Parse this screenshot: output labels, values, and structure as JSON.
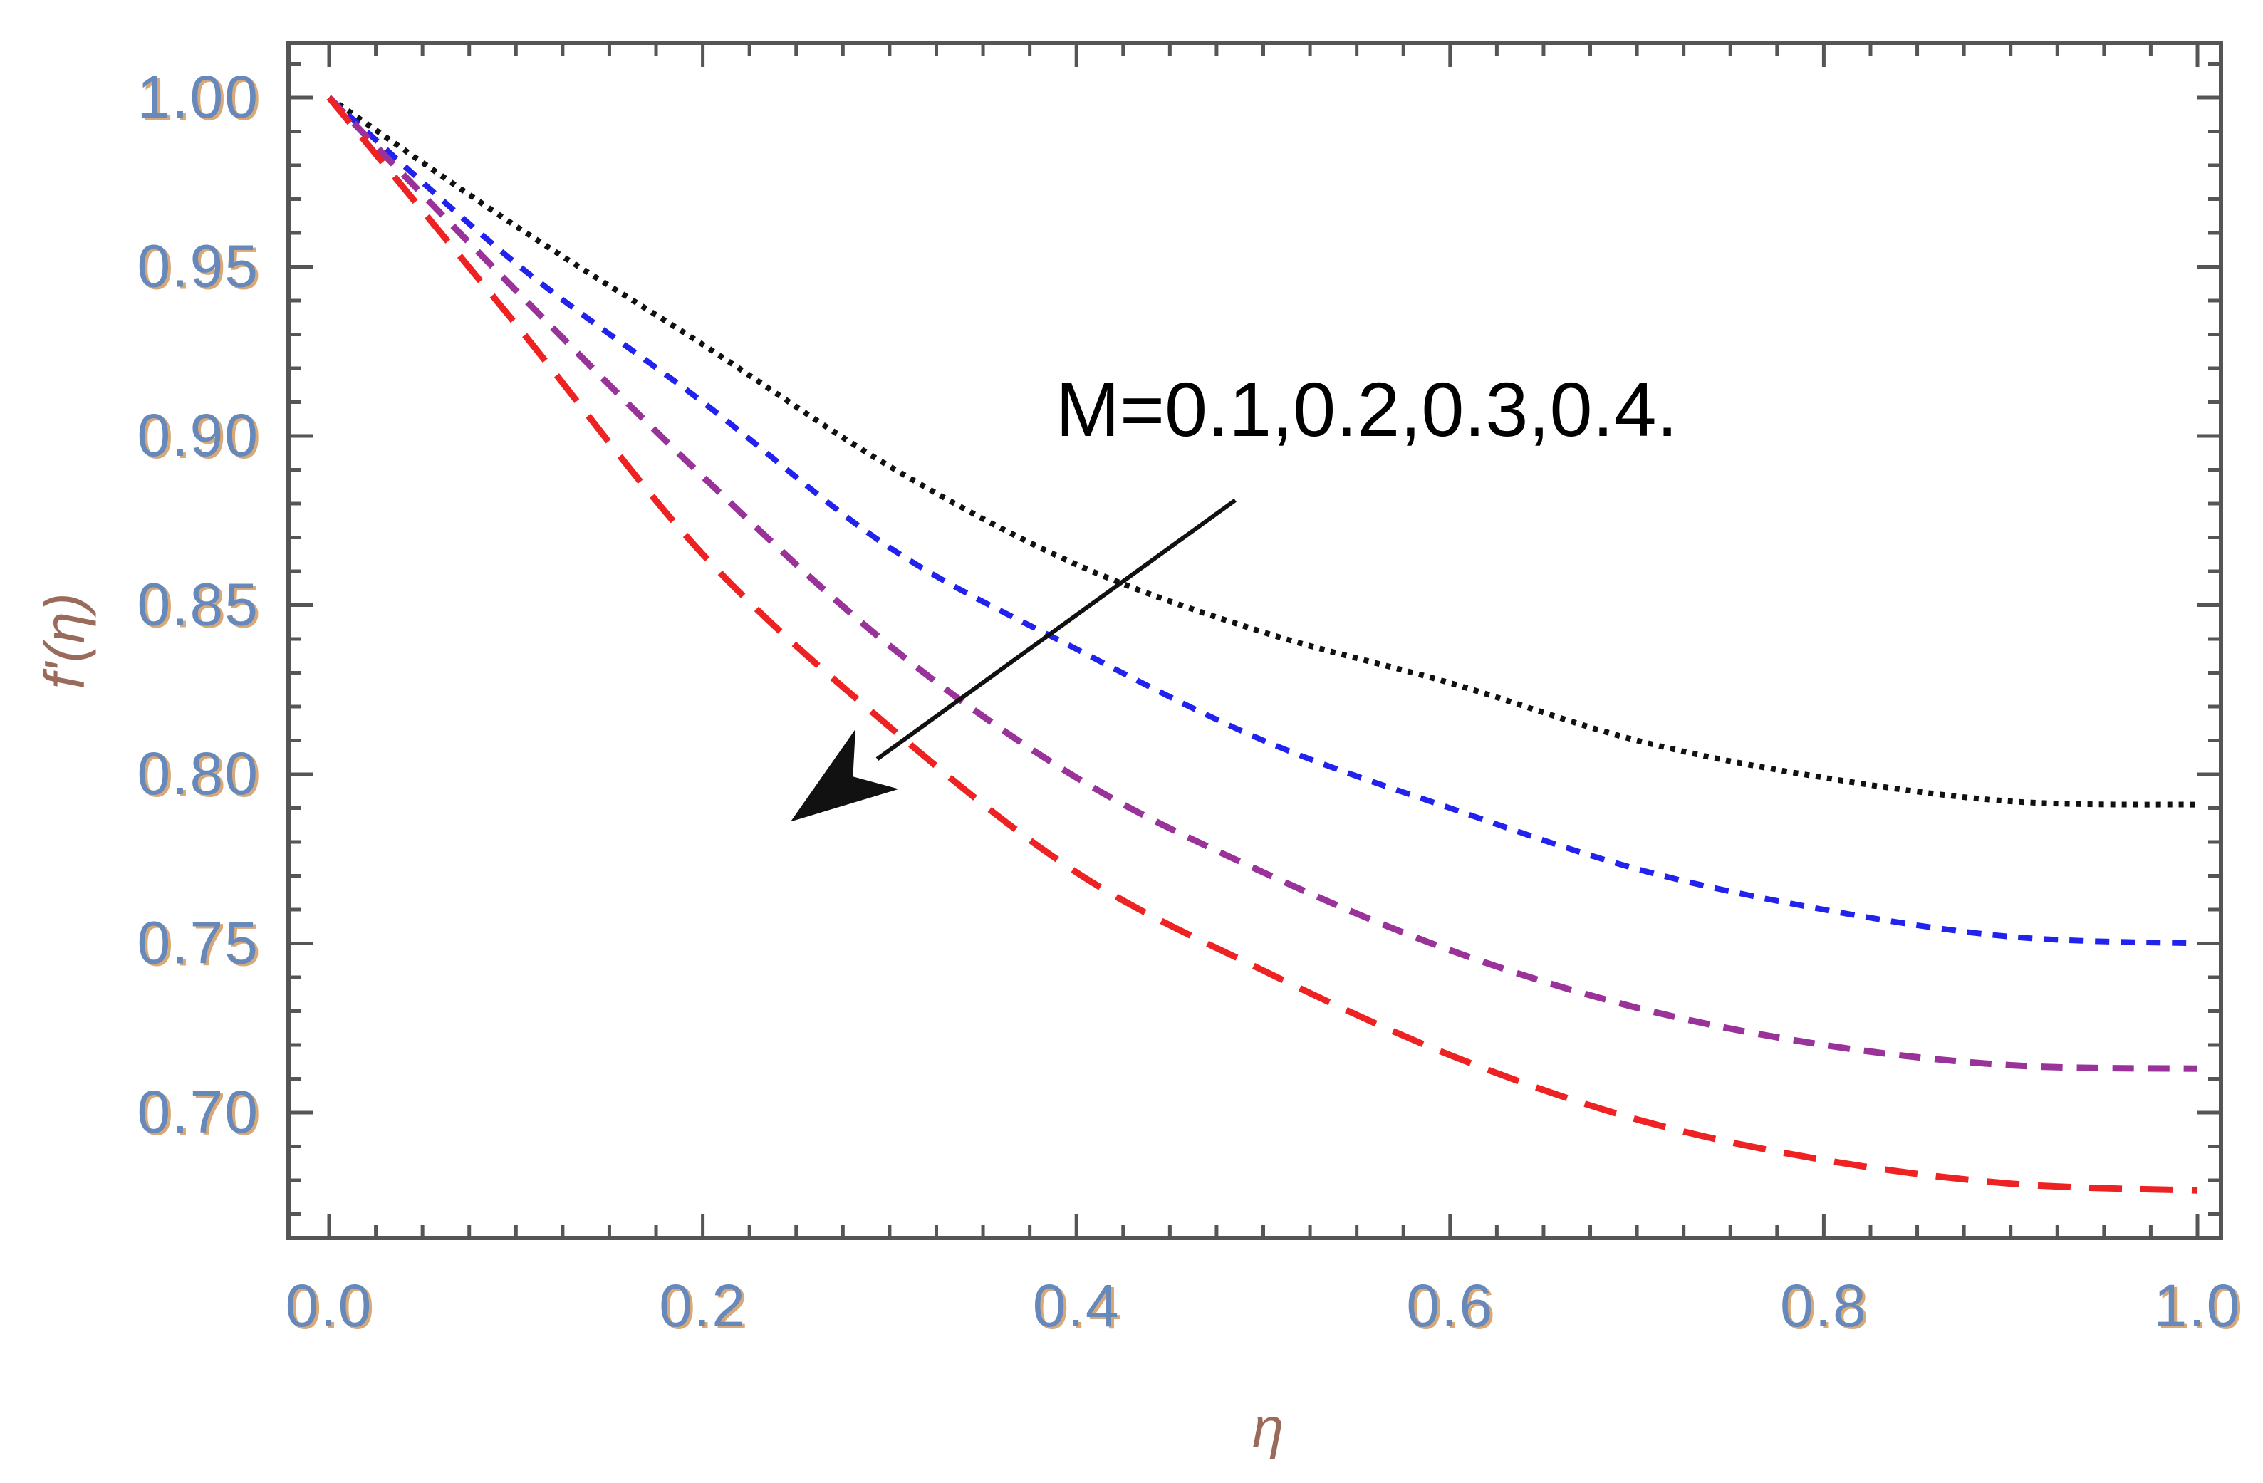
{
  "chart_data": {
    "type": "line",
    "title": "",
    "xlabel": "η",
    "ylabel": "f'(η)",
    "xlim": [
      0.0,
      1.0
    ],
    "ylim": [
      0.665,
      1.017
    ],
    "grid": false,
    "x_ticks": [
      0.0,
      0.2,
      0.4,
      0.6,
      0.8,
      1.0
    ],
    "x_tick_labels": [
      "0.0",
      "0.2",
      "0.4",
      "0.6",
      "0.8",
      "1.0"
    ],
    "y_ticks": [
      0.7,
      0.75,
      0.8,
      0.85,
      0.9,
      0.95,
      1.0
    ],
    "y_tick_labels": [
      "0.70",
      "0.75",
      "0.80",
      "0.85",
      "0.90",
      "0.95",
      "1.00"
    ],
    "x": [
      0.0,
      0.1,
      0.2,
      0.3,
      0.4,
      0.5,
      0.6,
      0.7,
      0.8,
      0.9,
      1.0
    ],
    "series": [
      {
        "name": "M=0.1",
        "color": "#111111",
        "dash": "dotted",
        "values": [
          1.0,
          0.962,
          0.927,
          0.891,
          0.862,
          0.842,
          0.827,
          0.81,
          0.799,
          0.792,
          0.791
        ]
      },
      {
        "name": "M=0.2",
        "color": "#2222ee",
        "dash": "short-dash",
        "values": [
          1.0,
          0.951,
          0.91,
          0.867,
          0.837,
          0.81,
          0.79,
          0.772,
          0.76,
          0.752,
          0.75
        ]
      },
      {
        "name": "M=0.3",
        "color": "#993399",
        "dash": "medium-dash",
        "values": [
          1.0,
          0.943,
          0.888,
          0.838,
          0.799,
          0.771,
          0.748,
          0.731,
          0.72,
          0.714,
          0.713
        ]
      },
      {
        "name": "M=0.4",
        "color": "#ee2222",
        "dash": "long-dash",
        "values": [
          1.0,
          0.933,
          0.865,
          0.814,
          0.771,
          0.742,
          0.717,
          0.698,
          0.686,
          0.679,
          0.677
        ]
      }
    ],
    "annotation": {
      "text": "M=0.1,0.2,0.3,0.4.",
      "arrow_from": [
        0.485,
        0.881
      ],
      "arrow_to": [
        0.247,
        0.786
      ],
      "color": "#111111"
    },
    "colors": {
      "frame": "#555555",
      "tick_label": "#6688bb",
      "tick_label_shadow": "#d9a877",
      "axis_label": "#9a6a5a"
    }
  }
}
